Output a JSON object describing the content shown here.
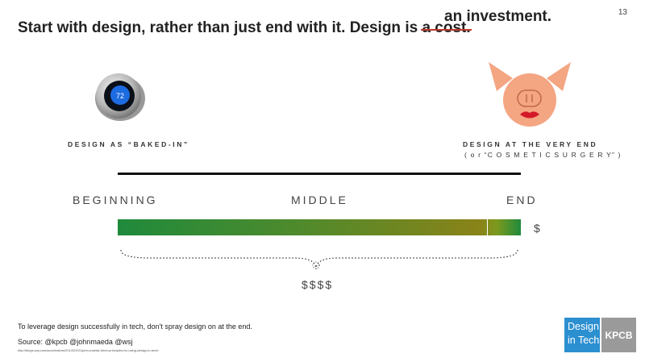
{
  "slide": {
    "number": "13",
    "title": {
      "main": "Start with design, rather than just end with it. Design is",
      "struck": "a cost.",
      "replacement": "an investment."
    },
    "left_caption": "DESIGN AS “BAKED-IN”",
    "right_caption_line1": "DESIGN AT THE VERY END",
    "right_caption_line2": "( o r  “C O S M E T I C  S U R G E R Y” )",
    "thermostat_reading": "72",
    "stages": {
      "beginning": "BEGINNING",
      "middle": "MIDDLE",
      "end": "END"
    },
    "cost_end": "$",
    "cost_early": "$$$$",
    "takeaway": "To leverage design successfully in tech, don't spray design on at the end.",
    "source": "Source: @kpcb @johnmaeda @wsj",
    "url": "http://blogs.wsj.com/accelerators/2014/03/21/john-maeda-three-principles-for-using-design-in-tech/",
    "logo": {
      "line1": "Design",
      "line2": "in Tech",
      "brand": "KPCB"
    },
    "colors": {
      "bar_start": "#1f8a3c",
      "bar_end": "#8a8318",
      "strike": "#c0392b",
      "logo_blue": "#2c8fd0",
      "logo_gray": "#9a9a9a"
    },
    "icons": {
      "left": "thermostat-icon",
      "right": "pig-with-lipstick-icon"
    }
  }
}
